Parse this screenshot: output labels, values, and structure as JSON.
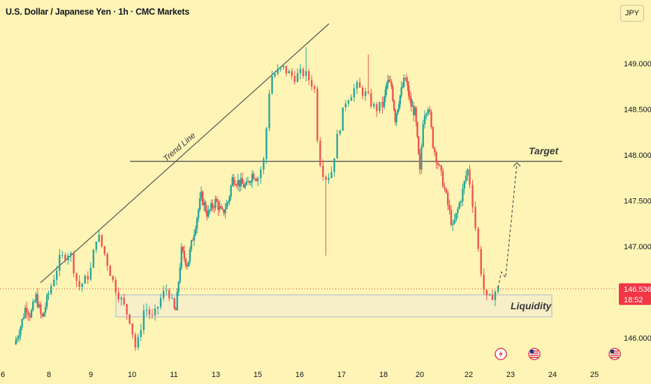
{
  "header": {
    "title": "U.S. Dollar / Japanese Yen · 1h · CMC Markets",
    "currency_button": "JPY"
  },
  "colors": {
    "background": "#fdf4b5",
    "up": "#26a69a",
    "down": "#ef5350",
    "price_tag": "#f23645",
    "liquidity_zone": "#f6efc8",
    "liquidity_border": "#b8c2c8",
    "line": "#555555"
  },
  "chart_data": {
    "type": "candlestick",
    "title": "U.S. Dollar / Japanese Yen · 1h · CMC Markets",
    "ylim": [
      145.8,
      149.4
    ],
    "y_ticks": [
      149.0,
      148.5,
      148.0,
      147.5,
      147.0,
      146.0
    ],
    "y_tick_labels": [
      "149.000",
      "148.500",
      "148.000",
      "147.500",
      "147.000",
      "146.000"
    ],
    "x_tick_labels": [
      "6",
      "8",
      "9",
      "10",
      "11",
      "13",
      "15",
      "16",
      "17",
      "18",
      "20",
      "22",
      "23",
      "24",
      "25"
    ],
    "current_price": 146.536,
    "current_price_label": "146.536",
    "countdown": "18:52",
    "annotations": {
      "trend_line": "Trend Line",
      "target": "Target",
      "liquidity": "Liquidity"
    },
    "target_level": 147.93,
    "liquidity_zone": [
      146.23,
      146.47
    ],
    "projection": [
      {
        "x_day": 22.7,
        "y": 146.55
      },
      {
        "x_day": 22.78,
        "y": 146.72
      },
      {
        "x_day": 22.88,
        "y": 146.66
      },
      {
        "x_day": 23.15,
        "y": 147.9
      }
    ],
    "price_path": [
      [
        6.5,
        145.93
      ],
      [
        6.8,
        146.15
      ],
      [
        7.0,
        146.35
      ],
      [
        7.2,
        146.25
      ],
      [
        7.45,
        146.45
      ],
      [
        7.7,
        146.2
      ],
      [
        8.0,
        146.5
      ],
      [
        8.25,
        146.85
      ],
      [
        8.5,
        146.95
      ],
      [
        8.7,
        146.55
      ],
      [
        8.9,
        146.65
      ],
      [
        9.0,
        146.75
      ],
      [
        9.15,
        147.15
      ],
      [
        9.35,
        146.9
      ],
      [
        9.55,
        146.6
      ],
      [
        9.75,
        146.4
      ],
      [
        9.95,
        146.2
      ],
      [
        10.1,
        145.85
      ],
      [
        10.3,
        146.35
      ],
      [
        10.5,
        146.2
      ],
      [
        10.7,
        146.45
      ],
      [
        10.85,
        146.55
      ],
      [
        11.0,
        146.3
      ],
      [
        11.1,
        146.3
      ],
      [
        11.35,
        146.95
      ],
      [
        11.65,
        146.8
      ],
      [
        11.9,
        147.1
      ],
      [
        12.3,
        147.55
      ],
      [
        12.6,
        147.35
      ],
      [
        13.0,
        147.5
      ],
      [
        13.3,
        147.35
      ],
      [
        13.6,
        147.5
      ],
      [
        13.8,
        147.75
      ],
      [
        14.1,
        147.7
      ],
      [
        14.45,
        147.65
      ],
      [
        14.75,
        147.8
      ],
      [
        15.0,
        147.75
      ],
      [
        15.15,
        147.95
      ],
      [
        15.3,
        148.85
      ],
      [
        15.6,
        148.95
      ],
      [
        15.85,
        148.85
      ],
      [
        16.1,
        148.9
      ],
      [
        16.35,
        148.75
      ],
      [
        16.45,
        148.0
      ],
      [
        16.6,
        147.75
      ],
      [
        16.75,
        147.8
      ],
      [
        16.9,
        148.2
      ],
      [
        17.1,
        148.6
      ],
      [
        17.35,
        148.75
      ],
      [
        17.6,
        148.65
      ],
      [
        17.8,
        148.5
      ],
      [
        18.0,
        148.55
      ],
      [
        18.2,
        148.8
      ],
      [
        18.45,
        148.75
      ],
      [
        18.65,
        148.4
      ],
      [
        18.85,
        148.6
      ],
      [
        19.2,
        148.85
      ],
      [
        19.5,
        148.55
      ],
      [
        19.75,
        148.45
      ],
      [
        20.0,
        147.8
      ],
      [
        20.15,
        148.45
      ],
      [
        20.35,
        148.55
      ],
      [
        20.55,
        148.1
      ],
      [
        20.75,
        147.9
      ],
      [
        20.95,
        147.7
      ],
      [
        21.15,
        147.45
      ],
      [
        21.35,
        147.2
      ],
      [
        21.55,
        147.4
      ],
      [
        21.75,
        147.6
      ],
      [
        21.95,
        147.85
      ],
      [
        22.05,
        147.65
      ],
      [
        22.2,
        147.05
      ],
      [
        22.35,
        146.55
      ],
      [
        22.45,
        146.38
      ],
      [
        22.6,
        146.5
      ],
      [
        22.7,
        146.53
      ]
    ],
    "events": [
      "flash-event-icon",
      "us-flag-icon",
      "us-flag-icon"
    ]
  }
}
